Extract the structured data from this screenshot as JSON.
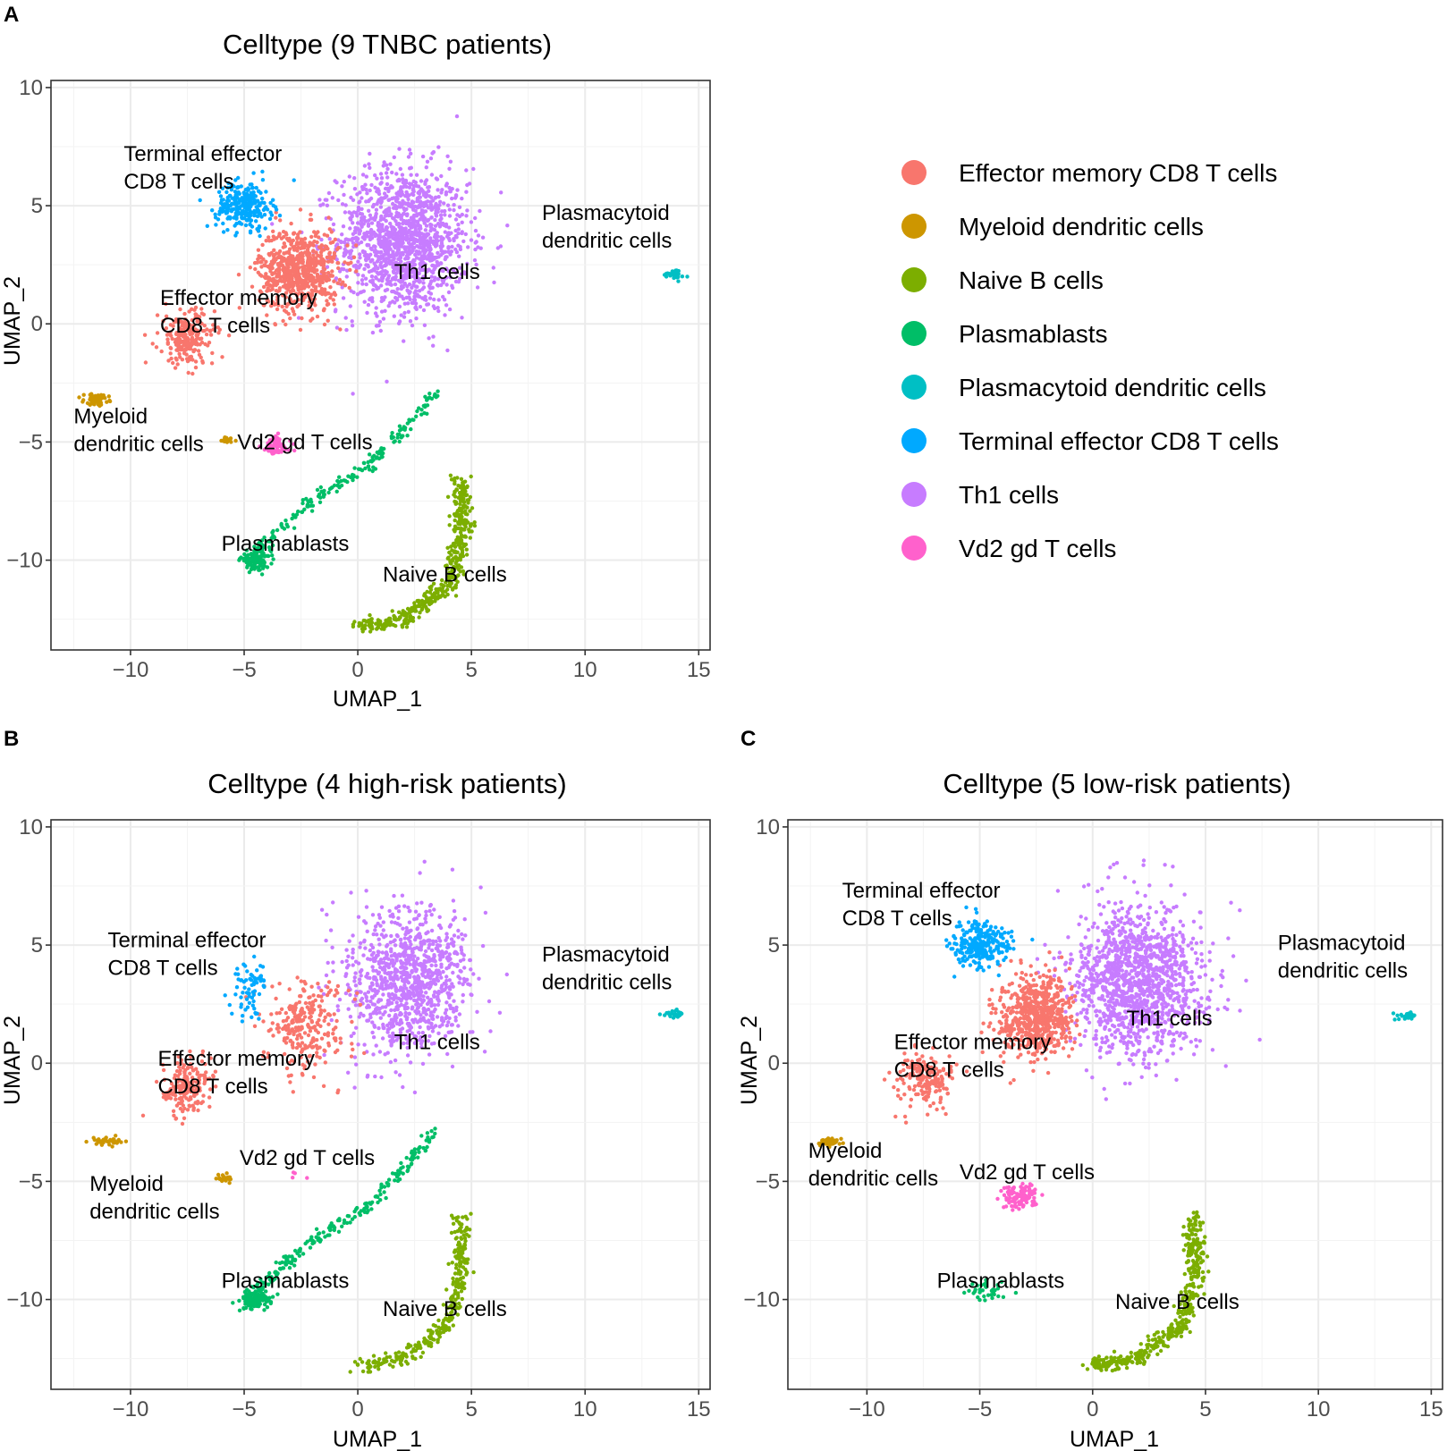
{
  "chart_data": [
    {
      "panel": "A",
      "type": "scatter",
      "title": "Celltype (9 TNBC patients)",
      "xlabel": "UMAP_1",
      "ylabel": "UMAP_2",
      "xlim": [
        -13.5,
        15.5
      ],
      "ylim": [
        -13.8,
        10.3
      ],
      "xticks": [
        -10,
        -5,
        0,
        5,
        10,
        15
      ],
      "yticks": [
        -10,
        -5,
        0,
        5,
        10
      ],
      "grid": true,
      "labels": [
        {
          "lines": [
            "Terminal effector",
            "CD8 T cells"
          ],
          "x": -10.3,
          "y": 6.9
        },
        {
          "lines": [
            "Plasmacytoid",
            "dendritic cells"
          ],
          "x": 8.1,
          "y": 4.4
        },
        {
          "lines": [
            "Th1 cells"
          ],
          "x": 1.6,
          "y": 1.9
        },
        {
          "lines": [
            "Effector memory",
            "CD8 T cells"
          ],
          "x": -8.7,
          "y": 0.8
        },
        {
          "lines": [
            "Myeloid",
            "dendritic cells"
          ],
          "x": -12.5,
          "y": -4.2
        },
        {
          "lines": [
            "Vd2 gd T cells"
          ],
          "x": -5.3,
          "y": -5.3
        },
        {
          "lines": [
            "Plasmablasts"
          ],
          "x": -6.0,
          "y": -9.6
        },
        {
          "lines": [
            "Naive B cells"
          ],
          "x": 1.1,
          "y": -10.9
        }
      ],
      "clusters": [
        {
          "cell_type": "Th1 cells",
          "center": [
            2.0,
            3.5
          ],
          "spread": [
            2.6,
            2.8
          ],
          "count": 1400
        },
        {
          "cell_type": "Effector memory CD8 T cells",
          "center": [
            -2.6,
            2.3
          ],
          "spread": [
            1.6,
            1.6
          ],
          "count": 700
        },
        {
          "cell_type": "Terminal effector CD8 T cells",
          "center": [
            -5.0,
            5.0
          ],
          "spread": [
            1.1,
            0.9
          ],
          "count": 260
        },
        {
          "cell_type": "Effector memory CD8 T cells",
          "center": [
            -7.5,
            -0.6
          ],
          "spread": [
            1.1,
            1.1
          ],
          "count": 220
        },
        {
          "cell_type": "Myeloid dendritic cells",
          "center": [
            -11.5,
            -3.2
          ],
          "spread": [
            0.5,
            0.2
          ],
          "count": 60
        },
        {
          "cell_type": "Myeloid dendritic cells",
          "center": [
            -5.8,
            -4.9
          ],
          "spread": [
            0.35,
            0.15
          ],
          "count": 25
        },
        {
          "cell_type": "Vd2 gd T cells",
          "center": [
            -3.6,
            -5.2
          ],
          "spread": [
            0.6,
            0.4
          ],
          "count": 70
        },
        {
          "cell_type": "Plasmablasts",
          "center": [
            -4.5,
            -10.0
          ],
          "spread": [
            0.6,
            0.35
          ],
          "count": 120
        },
        {
          "cell_type": "Plasmablasts",
          "path": [
            [
              -4.5,
              -9.6
            ],
            [
              -2.0,
              -7.5
            ],
            [
              0.5,
              -6.0
            ],
            [
              2.5,
              -4.0
            ],
            [
              3.5,
              -2.8
            ]
          ],
          "spread": [
            0.25,
            0.25
          ],
          "count": 180
        },
        {
          "cell_type": "Naive B cells",
          "path": [
            [
              4.5,
              -6.5
            ],
            [
              4.6,
              -9.0
            ],
            [
              4.0,
              -11.0
            ],
            [
              2.0,
              -12.5
            ],
            [
              0.0,
              -12.8
            ]
          ],
          "spread": [
            0.45,
            0.3
          ],
          "count": 450
        },
        {
          "cell_type": "Plasmacytoid dendritic cells",
          "center": [
            13.9,
            2.1
          ],
          "spread": [
            0.4,
            0.15
          ],
          "count": 30
        }
      ]
    },
    {
      "panel": "B",
      "type": "scatter",
      "title": "Celltype (4 high-risk patients)",
      "xlabel": "UMAP_1",
      "ylabel": "UMAP_2",
      "xlim": [
        -13.5,
        15.5
      ],
      "ylim": [
        -13.8,
        10.3
      ],
      "xticks": [
        -10,
        -5,
        0,
        5,
        10,
        15
      ],
      "yticks": [
        -10,
        -5,
        0,
        5,
        10
      ],
      "grid": true,
      "labels": [
        {
          "lines": [
            "Terminal effector",
            "CD8 T cells"
          ],
          "x": -11.0,
          "y": 4.9
        },
        {
          "lines": [
            "Plasmacytoid",
            "dendritic cells"
          ],
          "x": 8.1,
          "y": 4.3
        },
        {
          "lines": [
            "Th1 cells"
          ],
          "x": 1.6,
          "y": 0.6
        },
        {
          "lines": [
            "Effector memory",
            "CD8 T cells"
          ],
          "x": -8.8,
          "y": -0.1
        },
        {
          "lines": [
            "Vd2 gd T cells"
          ],
          "x": -5.2,
          "y": -4.3
        },
        {
          "lines": [
            "Myeloid",
            "dendritic cells"
          ],
          "x": -11.8,
          "y": -5.4
        },
        {
          "lines": [
            "Plasmablasts"
          ],
          "x": -6.0,
          "y": -9.5
        },
        {
          "lines": [
            "Naive B cells"
          ],
          "x": 1.1,
          "y": -10.7
        }
      ],
      "clusters": [
        {
          "cell_type": "Th1 cells",
          "center": [
            2.2,
            3.5
          ],
          "spread": [
            2.4,
            2.8
          ],
          "count": 1000
        },
        {
          "cell_type": "Effector memory CD8 T cells",
          "center": [
            -2.3,
            1.6
          ],
          "spread": [
            1.7,
            1.6
          ],
          "count": 260
        },
        {
          "cell_type": "Terminal effector CD8 T cells",
          "center": [
            -4.8,
            3.2
          ],
          "spread": [
            0.8,
            1.2
          ],
          "count": 70
        },
        {
          "cell_type": "Effector memory CD8 T cells",
          "center": [
            -7.5,
            -1.0
          ],
          "spread": [
            1.0,
            1.0
          ],
          "count": 190
        },
        {
          "cell_type": "Myeloid dendritic cells",
          "center": [
            -11.0,
            -3.3
          ],
          "spread": [
            0.6,
            0.15
          ],
          "count": 35
        },
        {
          "cell_type": "Myeloid dendritic cells",
          "center": [
            -5.8,
            -4.9
          ],
          "spread": [
            0.35,
            0.15
          ],
          "count": 25
        },
        {
          "cell_type": "Plasmablasts",
          "center": [
            -4.5,
            -10.0
          ],
          "spread": [
            0.6,
            0.4
          ],
          "count": 120
        },
        {
          "cell_type": "Plasmablasts",
          "path": [
            [
              -4.5,
              -9.6
            ],
            [
              -2.0,
              -7.5
            ],
            [
              0.5,
              -6.0
            ],
            [
              2.5,
              -4.0
            ],
            [
              3.5,
              -2.8
            ]
          ],
          "spread": [
            0.25,
            0.25
          ],
          "count": 200
        },
        {
          "cell_type": "Naive B cells",
          "path": [
            [
              4.5,
              -6.5
            ],
            [
              4.6,
              -9.0
            ],
            [
              4.0,
              -11.0
            ],
            [
              2.0,
              -12.5
            ],
            [
              0.0,
              -12.8
            ]
          ],
          "spread": [
            0.4,
            0.3
          ],
          "count": 300
        },
        {
          "cell_type": "Plasmacytoid dendritic cells",
          "center": [
            13.9,
            2.1
          ],
          "spread": [
            0.4,
            0.15
          ],
          "count": 25
        },
        {
          "cell_type": "Vd2 gd T cells",
          "center": [
            -2.5,
            -4.8
          ],
          "spread": [
            0.6,
            0.3
          ],
          "count": 4
        }
      ]
    },
    {
      "panel": "C",
      "type": "scatter",
      "title": "Celltype (5 low-risk patients)",
      "xlabel": "UMAP_1",
      "ylabel": "UMAP_2",
      "xlim": [
        -13.5,
        15.5
      ],
      "ylim": [
        -13.8,
        10.3
      ],
      "xticks": [
        -10,
        -5,
        0,
        5,
        10,
        15
      ],
      "yticks": [
        -10,
        -5,
        0,
        5,
        10
      ],
      "grid": true,
      "labels": [
        {
          "lines": [
            "Terminal effector",
            "CD8 T cells"
          ],
          "x": -11.1,
          "y": 7.0
        },
        {
          "lines": [
            "Plasmacytoid",
            "dendritic cells"
          ],
          "x": 8.2,
          "y": 4.8
        },
        {
          "lines": [
            "Th1 cells"
          ],
          "x": 1.5,
          "y": 1.6
        },
        {
          "lines": [
            "Effector memory",
            "CD8 T cells"
          ],
          "x": -8.8,
          "y": 0.6
        },
        {
          "lines": [
            "Myeloid",
            "dendritic cells"
          ],
          "x": -12.6,
          "y": -4.0
        },
        {
          "lines": [
            "Vd2 gd T cells"
          ],
          "x": -5.9,
          "y": -4.9
        },
        {
          "lines": [
            "Plasmablasts"
          ],
          "x": -6.9,
          "y": -9.5
        },
        {
          "lines": [
            "Naive B cells"
          ],
          "x": 1.0,
          "y": -10.4
        }
      ],
      "clusters": [
        {
          "cell_type": "Th1 cells",
          "center": [
            2.0,
            3.5
          ],
          "spread": [
            2.6,
            2.8
          ],
          "count": 1300
        },
        {
          "cell_type": "Effector memory CD8 T cells",
          "center": [
            -2.5,
            2.0
          ],
          "spread": [
            1.5,
            1.6
          ],
          "count": 650
        },
        {
          "cell_type": "Terminal effector CD8 T cells",
          "center": [
            -5.0,
            5.0
          ],
          "spread": [
            1.1,
            0.9
          ],
          "count": 260
        },
        {
          "cell_type": "Effector memory CD8 T cells",
          "center": [
            -7.5,
            -0.6
          ],
          "spread": [
            1.1,
            1.1
          ],
          "count": 180
        },
        {
          "cell_type": "Myeloid dendritic cells",
          "center": [
            -11.7,
            -3.3
          ],
          "spread": [
            0.4,
            0.15
          ],
          "count": 45
        },
        {
          "cell_type": "Vd2 gd T cells",
          "center": [
            -3.3,
            -5.6
          ],
          "spread": [
            0.7,
            0.45
          ],
          "count": 110
        },
        {
          "cell_type": "Plasmablasts",
          "center": [
            -4.6,
            -9.6
          ],
          "spread": [
            0.8,
            0.4
          ],
          "count": 35
        },
        {
          "cell_type": "Naive B cells",
          "path": [
            [
              4.5,
              -6.5
            ],
            [
              4.6,
              -9.0
            ],
            [
              4.0,
              -11.0
            ],
            [
              2.0,
              -12.5
            ],
            [
              0.0,
              -12.8
            ]
          ],
          "spread": [
            0.45,
            0.3
          ],
          "count": 420
        },
        {
          "cell_type": "Plasmacytoid dendritic cells",
          "center": [
            14.0,
            2.0
          ],
          "spread": [
            0.4,
            0.15
          ],
          "count": 30
        }
      ]
    }
  ],
  "legend": {
    "items": [
      {
        "label": "Effector memory CD8 T cells",
        "color": "#F8766D"
      },
      {
        "label": "Myeloid dendritic cells",
        "color": "#CD9600"
      },
      {
        "label": "Naive B cells",
        "color": "#7CAE00"
      },
      {
        "label": "Plasmablasts",
        "color": "#00BE67"
      },
      {
        "label": "Plasmacytoid dendritic cells",
        "color": "#00BFC4"
      },
      {
        "label": "Terminal effector CD8 T cells",
        "color": "#00A9FF"
      },
      {
        "label": "Th1 cells",
        "color": "#C77CFF"
      },
      {
        "label": "Vd2 gd T cells",
        "color": "#FF61CC"
      }
    ]
  }
}
